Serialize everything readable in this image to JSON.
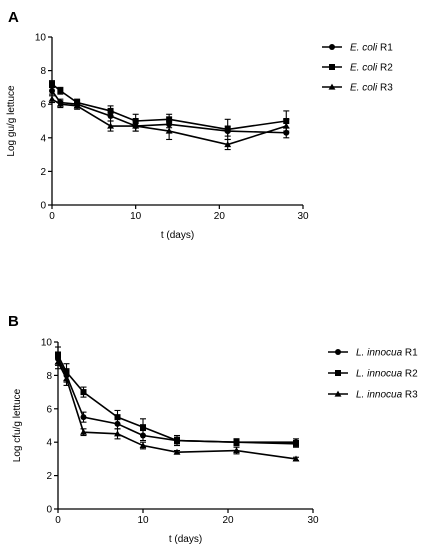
{
  "chart_data": [
    {
      "panel_label": "A",
      "type": "line",
      "xlabel": "t (days)",
      "ylabel": "Log gu/g lettuce",
      "xlim": [
        0,
        30
      ],
      "ylim": [
        0,
        10
      ],
      "xticks": [
        0,
        10,
        20,
        30
      ],
      "yticks": [
        0,
        2,
        4,
        6,
        8,
        10
      ],
      "grid": false,
      "legend_position": "right",
      "series": [
        {
          "name_italic": "E. coli",
          "name_suffix": " R1",
          "marker": "circle",
          "x": [
            0,
            1,
            3,
            7,
            10,
            14,
            21,
            28
          ],
          "y": [
            6.8,
            6.1,
            6.0,
            5.3,
            4.7,
            4.8,
            4.4,
            4.3
          ],
          "err": [
            0.2,
            0.2,
            0.2,
            0.3,
            0.3,
            0.2,
            0.3,
            0.3
          ]
        },
        {
          "name_italic": "E. coli",
          "name_suffix": " R2",
          "marker": "square",
          "x": [
            0,
            1,
            3,
            7,
            10,
            14,
            21,
            28
          ],
          "y": [
            7.2,
            6.8,
            6.1,
            5.6,
            5.0,
            5.1,
            4.5,
            5.0
          ],
          "err": [
            0.2,
            0.2,
            0.2,
            0.3,
            0.4,
            0.3,
            0.6,
            0.6
          ]
        },
        {
          "name_italic": "E. coli",
          "name_suffix": " R3",
          "marker": "triangle",
          "x": [
            0,
            1,
            3,
            7,
            10,
            14,
            21,
            28
          ],
          "y": [
            6.3,
            6.0,
            5.9,
            4.7,
            4.7,
            4.4,
            3.6,
            4.7
          ],
          "err": [
            0.2,
            0.2,
            0.2,
            0.3,
            0.3,
            0.5,
            0.3,
            0.4
          ]
        }
      ]
    },
    {
      "panel_label": "B",
      "type": "line",
      "xlabel": "t (days)",
      "ylabel": "Log cfu/g lettuce",
      "xlim": [
        0,
        30
      ],
      "ylim": [
        0,
        10
      ],
      "xticks": [
        0,
        10,
        20,
        30
      ],
      "yticks": [
        0,
        2,
        4,
        6,
        8,
        10
      ],
      "grid": false,
      "legend_position": "right",
      "series": [
        {
          "name_italic": "L. innocua",
          "name_suffix": " R1",
          "marker": "circle",
          "x": [
            0,
            1,
            3,
            7,
            10,
            14,
            21,
            28
          ],
          "y": [
            9.0,
            8.0,
            5.5,
            5.1,
            4.4,
            4.1,
            4.0,
            4.0
          ],
          "err": [
            0.4,
            0.4,
            0.3,
            0.3,
            0.3,
            0.2,
            0.2,
            0.2
          ]
        },
        {
          "name_italic": "L. innocua",
          "name_suffix": " R2",
          "marker": "square",
          "x": [
            0,
            1,
            3,
            7,
            10,
            14,
            21,
            28
          ],
          "y": [
            9.2,
            8.2,
            7.0,
            5.5,
            4.9,
            4.1,
            4.0,
            3.9
          ],
          "err": [
            0.5,
            0.5,
            0.3,
            0.4,
            0.5,
            0.3,
            0.2,
            0.2
          ]
        },
        {
          "name_italic": "L. innocua",
          "name_suffix": " R3",
          "marker": "triangle",
          "x": [
            0,
            1,
            3,
            7,
            10,
            14,
            21,
            28
          ],
          "y": [
            8.8,
            7.8,
            4.6,
            4.5,
            3.8,
            3.4,
            3.5,
            3.0
          ],
          "err": [
            0.4,
            0.4,
            0.2,
            0.3,
            0.2,
            0.1,
            0.2,
            0.1
          ]
        }
      ]
    }
  ]
}
